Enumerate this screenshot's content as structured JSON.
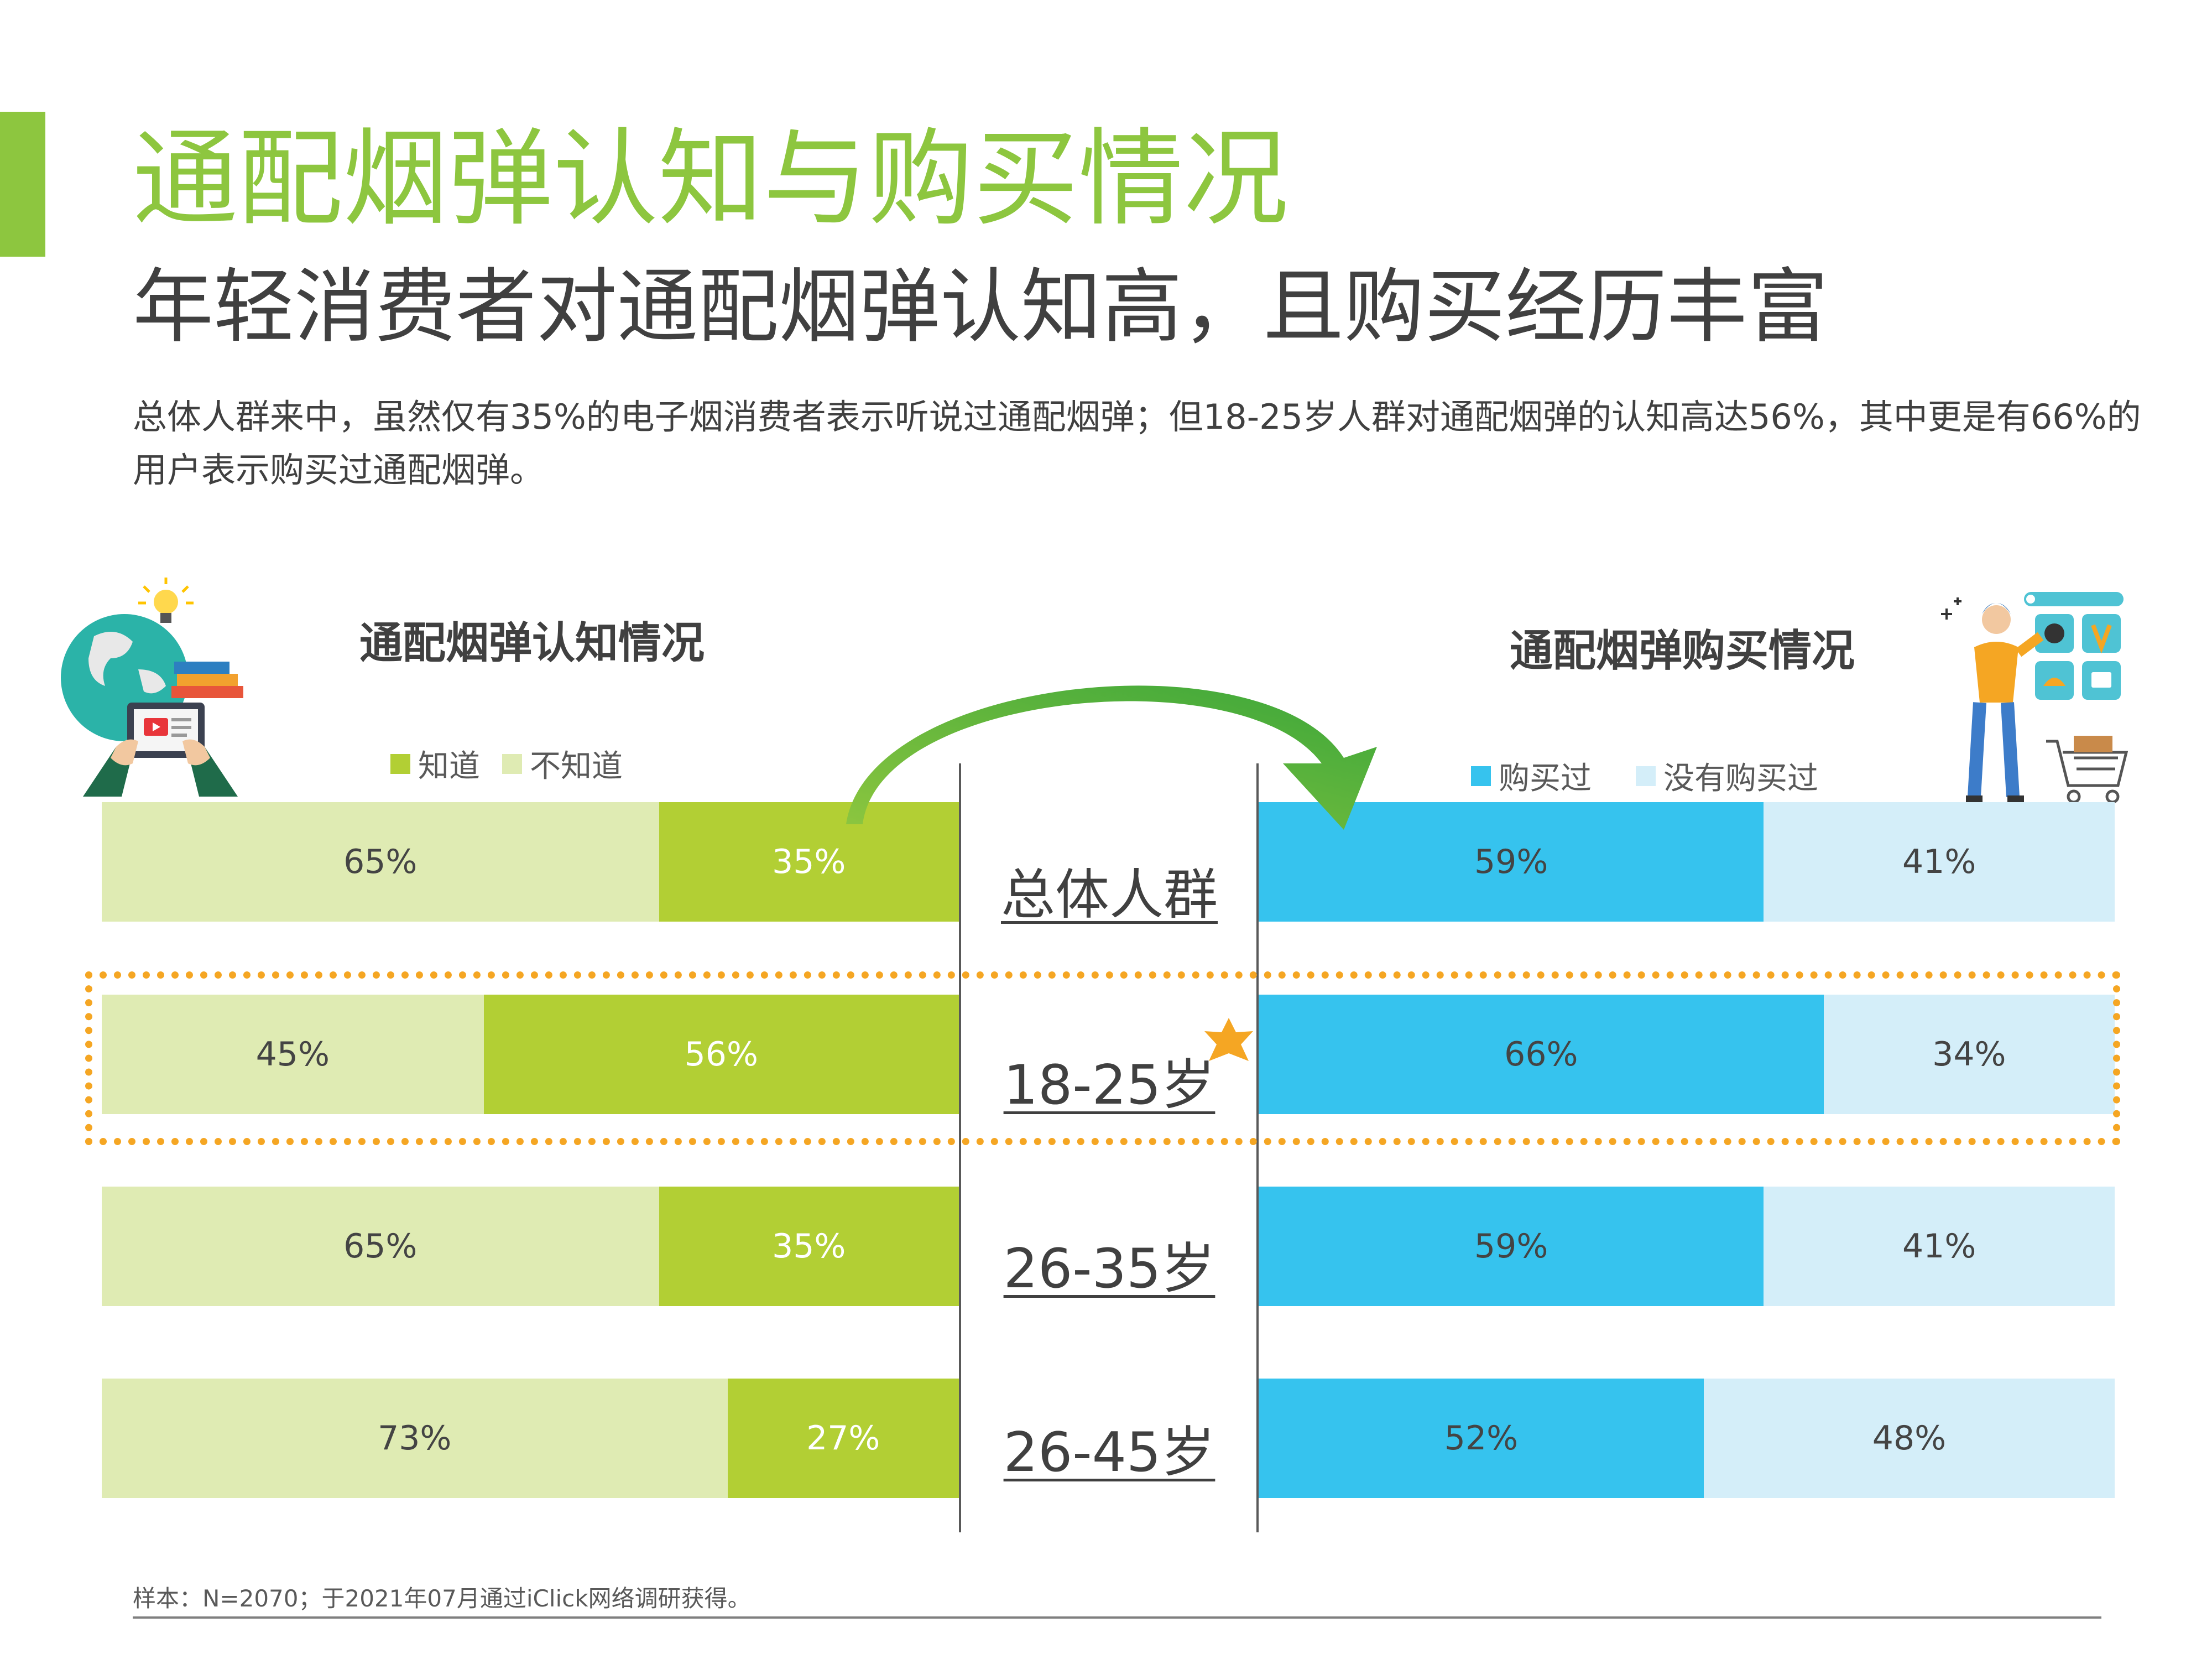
{
  "header": {
    "title": "通配烟弹认知与购买情况",
    "subtitle": "年轻消费者对通配烟弹认知高，且购买经历丰富",
    "description": "总体人群来中，虽然仅有35%的电子烟消费者表示听说过通配烟弹；但18-25岁人群对通配烟弹的认知高达56%，其中更是有66%的用户表示购买过通配烟弹。"
  },
  "colors": {
    "accent": "#8dc63f",
    "know": "#b2cf34",
    "not_know": "#dfebb3",
    "bought": "#36c3ee",
    "not_bought": "#d4eef9",
    "highlight": "#f5a623"
  },
  "chart_data": [
    {
      "type": "bar",
      "title": "通配烟弹认知情况",
      "categories": [
        "总体人群",
        "18-25岁",
        "26-35岁",
        "26-45岁"
      ],
      "series": [
        {
          "name": "不知道",
          "values": [
            65,
            45,
            65,
            73
          ],
          "labels": [
            "65%",
            "45%",
            "65%",
            "73%"
          ]
        },
        {
          "name": "知道",
          "values": [
            35,
            56,
            35,
            27
          ],
          "labels": [
            "35%",
            "56%",
            "35%",
            "27%"
          ]
        }
      ],
      "legend": [
        "知道",
        "不知道"
      ]
    },
    {
      "type": "bar",
      "title": "通配烟弹购买情况",
      "categories": [
        "总体人群",
        "18-25岁",
        "26-35岁",
        "26-45岁"
      ],
      "series": [
        {
          "name": "购买过",
          "values": [
            59,
            66,
            59,
            52
          ],
          "labels": [
            "59%",
            "66%",
            "59%",
            "52%"
          ]
        },
        {
          "name": "没有购买过",
          "values": [
            41,
            34,
            41,
            48
          ],
          "labels": [
            "41%",
            "34%",
            "41%",
            "48%"
          ]
        }
      ],
      "legend": [
        "购买过",
        "没有购买过"
      ]
    }
  ],
  "icons": {
    "left_illustration": "globe-tablet-lightbulb-icon",
    "right_illustration": "shopper-with-cart-icon",
    "arrow": "curved-arrow-icon",
    "star": "star-icon"
  },
  "footer": {
    "note": "样本：N=2070；于2021年07月通过iClick网络调研获得。"
  }
}
